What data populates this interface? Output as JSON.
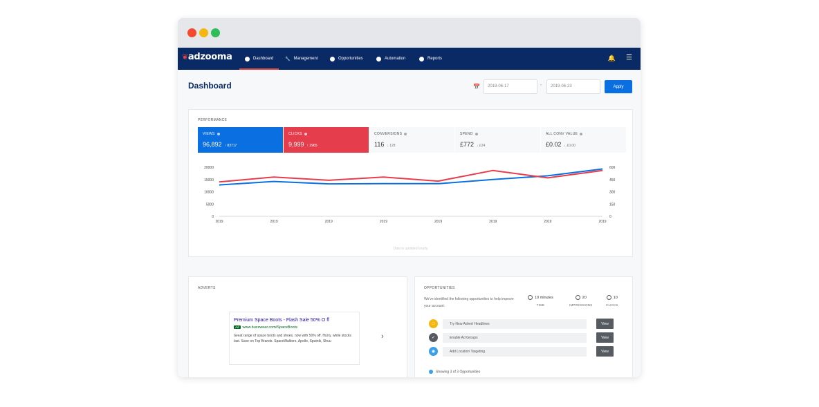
{
  "brand": {
    "logo": "adzooma"
  },
  "nav": {
    "items": [
      {
        "label": "Dashboard",
        "icon": "dashboard-icon"
      },
      {
        "label": "Management",
        "icon": "wrench-icon"
      },
      {
        "label": "Opportunities",
        "icon": "opportunities-icon"
      },
      {
        "label": "Automation",
        "icon": "automation-icon"
      },
      {
        "label": "Reports",
        "icon": "reports-icon"
      }
    ],
    "active": "Dashboard"
  },
  "header": {
    "title": "Dashboard",
    "date_from": "2019-06-17",
    "date_sep": "-",
    "date_to": "2019-06-23",
    "apply_label": "Apply"
  },
  "performance": {
    "label": "PERFORMANCE",
    "metrics": [
      {
        "name": "VIEWS",
        "value": "96,892",
        "delta": "↑ 83717"
      },
      {
        "name": "CLICKS",
        "value": "9,999",
        "delta": "↑ 2965"
      },
      {
        "name": "CONVERSIONS",
        "value": "116",
        "delta": "↓ 128"
      },
      {
        "name": "SPEND",
        "value": "£772",
        "delta": "↓ £24"
      },
      {
        "name": "ALL CONV VALUE",
        "value": "£0.02",
        "delta": "↓ £0.00"
      }
    ],
    "note": "Data is updated hourly"
  },
  "chart_data": {
    "type": "line",
    "x": [
      "2019",
      "2019",
      "2019",
      "2019",
      "2019",
      "2019",
      "2019",
      "2019"
    ],
    "y_left_ticks": [
      "20000",
      "15000",
      "10000",
      "5000",
      "0"
    ],
    "y_right_ticks": [
      "600",
      "450",
      "300",
      "150",
      "0"
    ],
    "ylim_left": [
      0,
      20000
    ],
    "ylim_right": [
      0,
      600
    ],
    "series": [
      {
        "name": "Views",
        "axis": "left",
        "color": "#0a6fe0",
        "values": [
          12800,
          14200,
          13200,
          13300,
          13300,
          15000,
          16500,
          19300
        ]
      },
      {
        "name": "Clicks",
        "axis": "right",
        "color": "#e63d4c",
        "values": [
          420,
          480,
          440,
          480,
          430,
          560,
          470,
          560
        ]
      }
    ]
  },
  "adverts": {
    "label": "ADVERTS",
    "ad": {
      "title": "Premium Space Boots - Flash Sale 50% O  ff",
      "badge": "Ad",
      "url": "www.buzzwear.com/SpaceBoots",
      "description": "Great range of space boots and shoes, now with 50% off. Hurry, while stocks last. Save on Top Brands. SpaceWalkers, Apollo, Sputnik, Shuu"
    },
    "next_label": "›"
  },
  "opportunities": {
    "label": "OPPORTUNITIES",
    "intro": "We've identified the following opportunities to help improve your account:",
    "stats": [
      {
        "value": "10 minutes",
        "label": "TIME"
      },
      {
        "value": "20",
        "label": "IMPRESSIONS"
      },
      {
        "value": "10",
        "label": "CLICKS"
      }
    ],
    "items": [
      {
        "label": "Try New Advert Headlines",
        "action": "View",
        "color": "#f5b70f"
      },
      {
        "label": "Enable Ad Groups",
        "action": "View",
        "color": "#555b60"
      },
      {
        "label": "Add Location Targeting",
        "action": "View",
        "color": "#3aa0e8"
      }
    ],
    "footer": "Showing 3 of 3 Opportunities"
  }
}
